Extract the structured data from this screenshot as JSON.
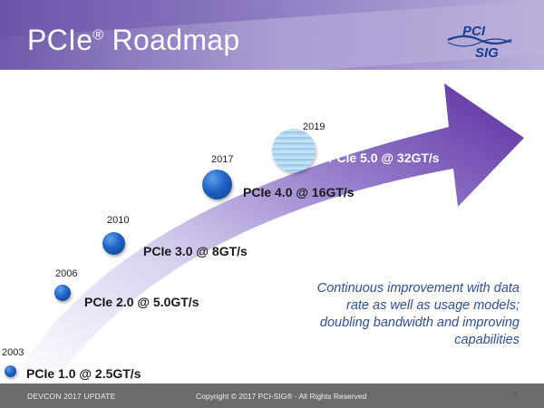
{
  "slide": {
    "title": "PCIe",
    "title_sup": "®",
    "title_rest": " Roadmap",
    "logo": {
      "line1": "PCI",
      "line2": "SIG"
    },
    "milestones": [
      {
        "year": "2003",
        "label": "PCIe 1.0 @ 2.5GT/s"
      },
      {
        "year": "2006",
        "label": "PCIe 2.0 @ 5.0GT/s"
      },
      {
        "year": "2010",
        "label": "PCIe 3.0 @ 8GT/s"
      },
      {
        "year": "2017",
        "label": "PCIe 4.0 @ 16GT/s"
      },
      {
        "year": "2019",
        "label": "PCIe 5.0 @ 32GT/s"
      }
    ],
    "note": "Continuous improvement with data rate as well as usage models; doubling bandwidth and improving capabilities",
    "footer_left": "DEVCON 2017 UPDATE",
    "footer_center": "Copyright © 2017 PCI-SIG® - All Rights Reserved",
    "page_number": "9",
    "colors": {
      "header": "#6a55a8",
      "arrow": "#6a3fa8",
      "dot": "#1e63c4",
      "note": "#2f4f9a",
      "footer": "#6b6b6b"
    }
  }
}
